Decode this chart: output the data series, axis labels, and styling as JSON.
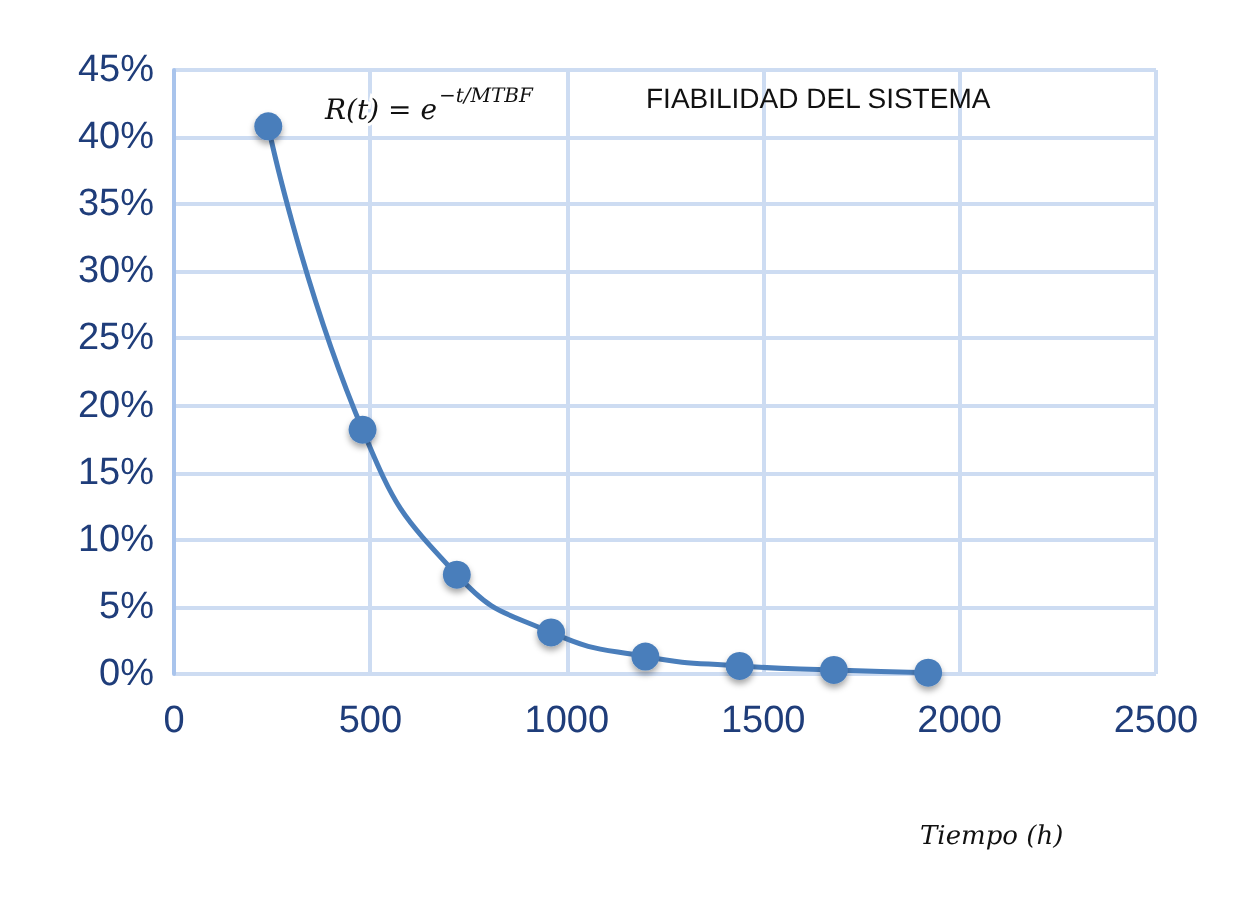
{
  "chart_data": {
    "type": "line",
    "title": "FIABILIDAD DEL SISTEMA",
    "xlabel": "Tiempo (h)",
    "annotations": [
      "R(t) = e$^{−t/MTBF}$"
    ],
    "x": [
      240,
      480,
      720,
      960,
      1200,
      1440,
      1680,
      1920
    ],
    "series": [
      {
        "color": "#4a7ebb",
        "values": [
          40.8,
          18.2,
          7.4,
          3.1,
          1.3,
          0.6,
          0.3,
          0.1
        ]
      }
    ],
    "xlim": [
      0,
      2500
    ],
    "xticks": [
      0,
      500,
      1000,
      1500,
      2000,
      2500
    ],
    "ylim": [
      0,
      45
    ],
    "yticks": [
      {
        "value": 0,
        "label": "0%"
      },
      {
        "value": 5,
        "label": "5%"
      },
      {
        "value": 10,
        "label": "10%"
      },
      {
        "value": 15,
        "label": "15%"
      },
      {
        "value": 20,
        "label": "20%"
      },
      {
        "value": 25,
        "label": "25%"
      },
      {
        "value": 30,
        "label": "30%"
      },
      {
        "value": 35,
        "label": "35%"
      },
      {
        "value": 40,
        "label": "40%"
      },
      {
        "value": 45,
        "label": "45%"
      }
    ],
    "grid": true,
    "marker": "circle",
    "line_style": "solid"
  }
}
